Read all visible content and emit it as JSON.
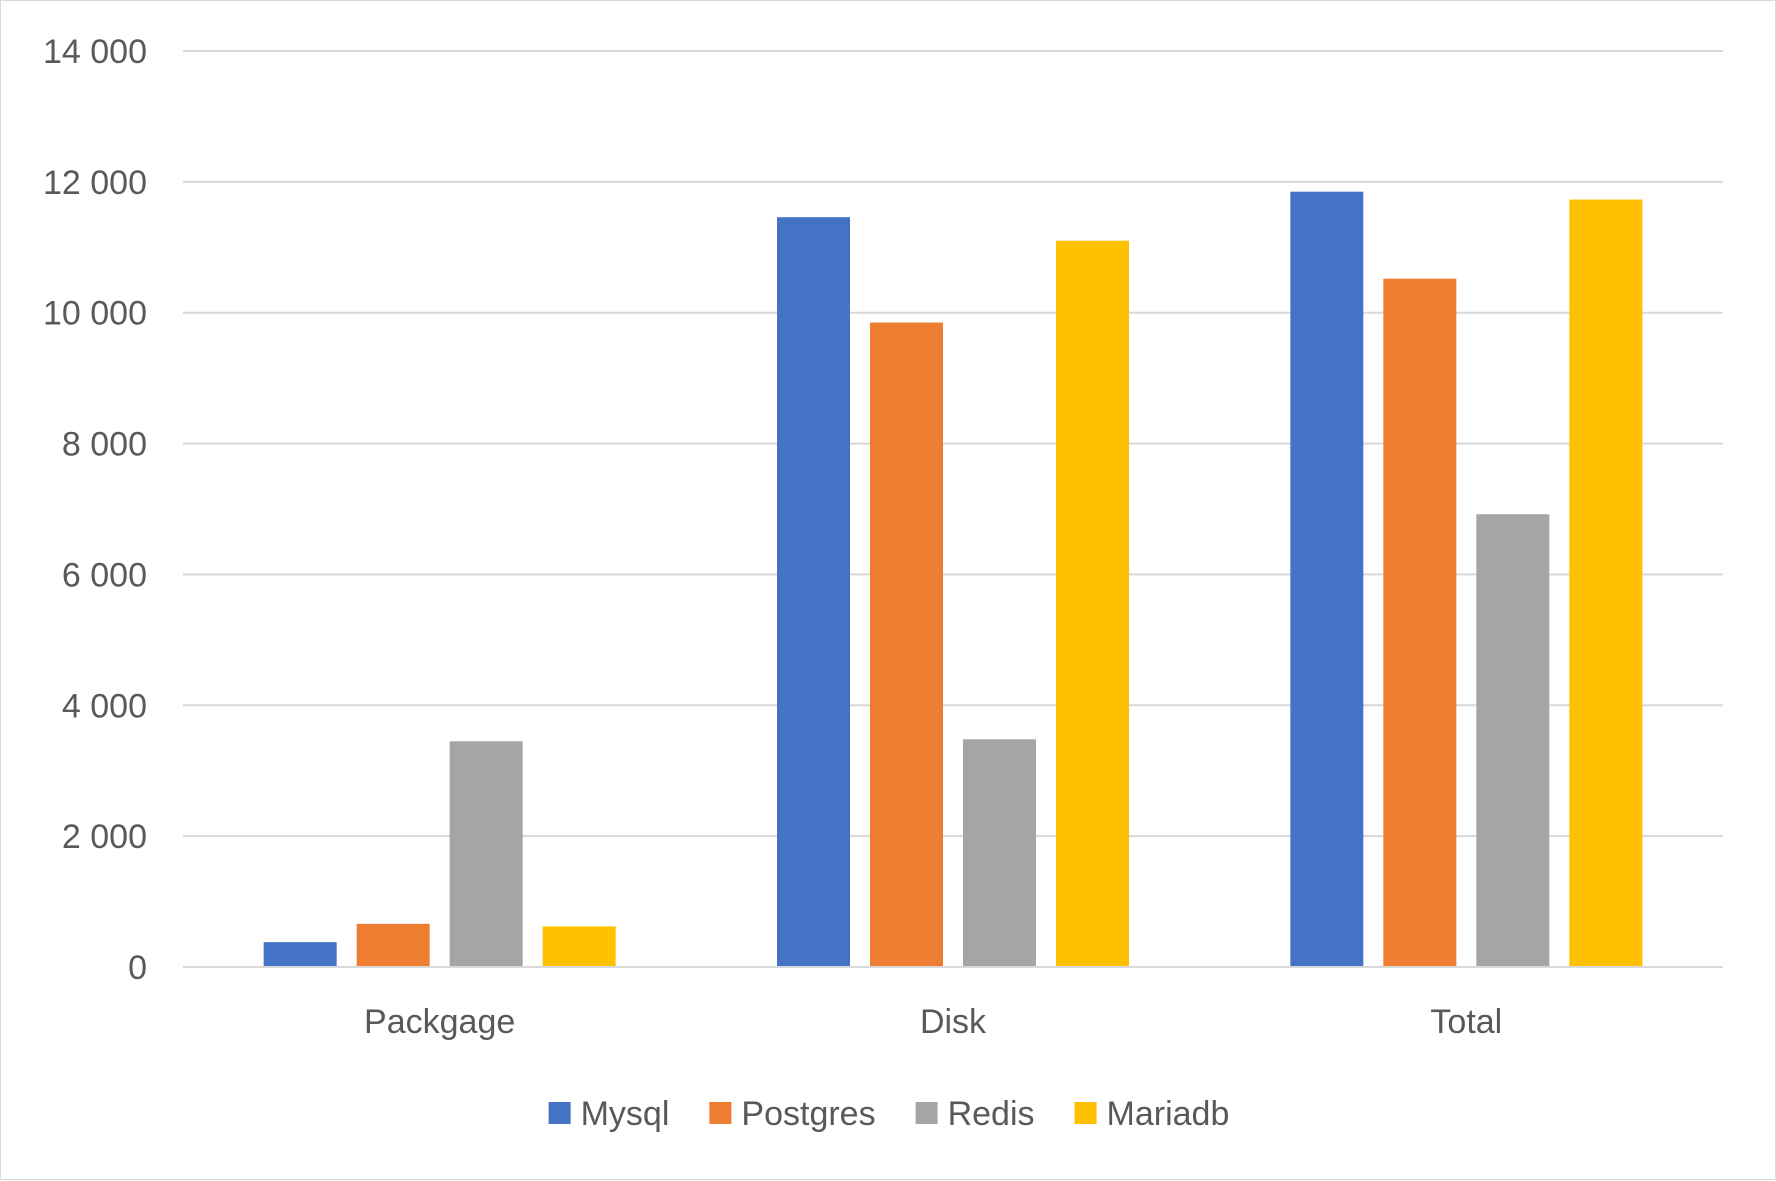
{
  "chart_data": {
    "type": "bar",
    "title": "",
    "xlabel": "",
    "ylabel": "",
    "categories": [
      "Packgage",
      "Disk",
      "Total"
    ],
    "series": [
      {
        "name": "Mysql",
        "color": "#4472C4",
        "values": [
          380,
          11460,
          11850
        ]
      },
      {
        "name": "Postgres",
        "color": "#ED7D31",
        "values": [
          660,
          9850,
          10520
        ]
      },
      {
        "name": "Redis",
        "color": "#A5A5A5",
        "values": [
          3450,
          3480,
          6920
        ]
      },
      {
        "name": "Mariadb",
        "color": "#FFC000",
        "values": [
          620,
          11100,
          11730
        ]
      }
    ],
    "ylim": [
      0,
      14000
    ],
    "y_ticks": [
      0,
      2000,
      4000,
      6000,
      8000,
      10000,
      12000,
      14000
    ],
    "y_tick_labels": [
      "0",
      "2 000",
      "4 000",
      "6 000",
      "8 000",
      "10 000",
      "12 000",
      "14 000"
    ],
    "grid": true,
    "gridline_color": "#d9d9d9",
    "legend_position": "bottom"
  }
}
